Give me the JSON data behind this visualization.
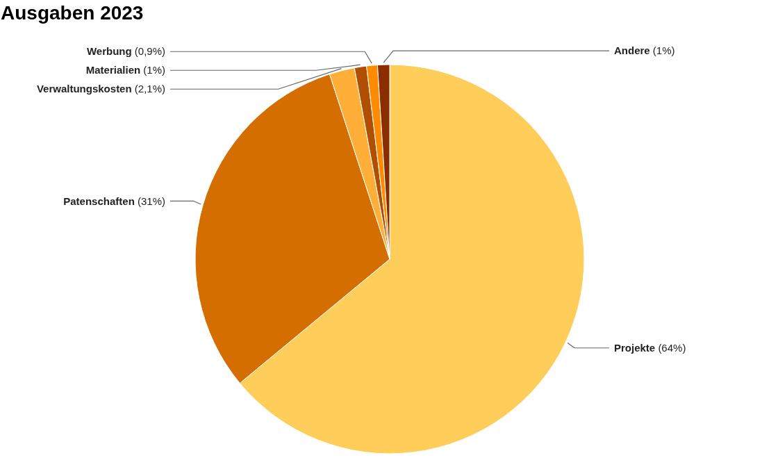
{
  "chart_data": {
    "type": "pie",
    "title": "Ausgaben 2023",
    "categories": [
      "Projekte",
      "Patenschaften",
      "Verwaltungskosten",
      "Materialien",
      "Werbung",
      "Andere"
    ],
    "values": [
      64,
      31,
      2.1,
      1,
      0.9,
      1
    ],
    "colors": [
      "#ffce5a",
      "#d56e00",
      "#ffae38",
      "#b04f00",
      "#ff8c00",
      "#8a2e00"
    ],
    "value_labels": [
      "(64%)",
      "(31%)",
      "(2,1%)",
      "(1%)",
      "(0,9%)",
      "(1%)"
    ]
  }
}
